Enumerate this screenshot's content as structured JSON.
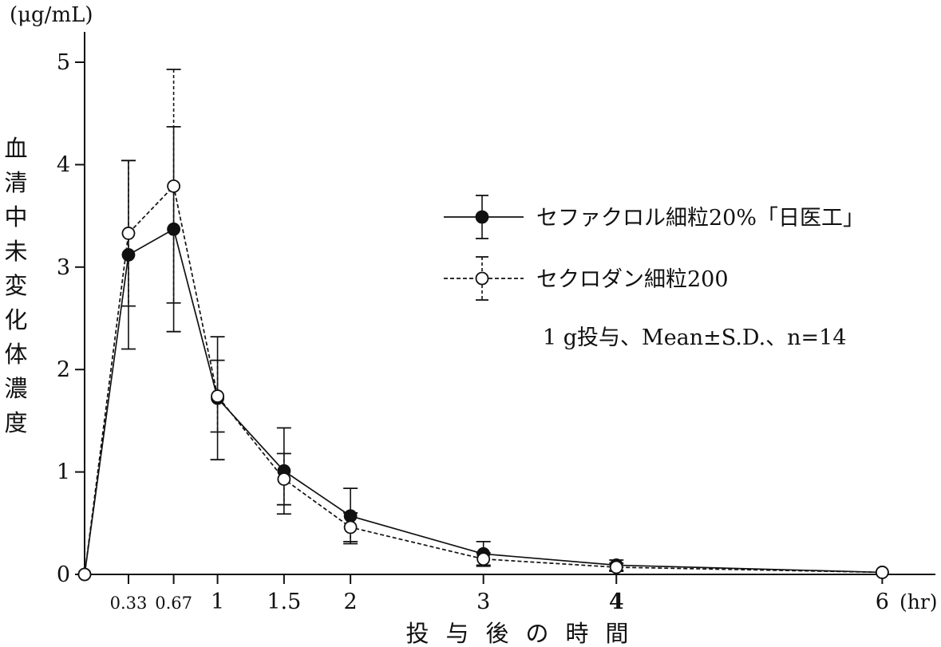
{
  "chart_data": {
    "type": "line",
    "title": "",
    "y_unit_label": "(μg/mL)",
    "ylabel": "血清中未変化体濃度",
    "xlabel": "投与後の時間",
    "x_unit_label": "(hr)",
    "x_ticks": [
      {
        "value": 0.33,
        "label": "0.33"
      },
      {
        "value": 0.67,
        "label": "0.67"
      },
      {
        "value": 1,
        "label": "1"
      },
      {
        "value": 1.5,
        "label": "1.5"
      },
      {
        "value": 2,
        "label": "2"
      },
      {
        "value": 3,
        "label": "3"
      },
      {
        "value": 4,
        "label": "4"
      },
      {
        "value": 6,
        "label": "6"
      }
    ],
    "y_ticks": [
      0,
      1,
      2,
      3,
      4,
      5
    ],
    "xlim": [
      0,
      6.4
    ],
    "ylim": [
      0,
      5
    ],
    "legend_placement": "upper-right",
    "series": [
      {
        "name": "セファクロル細粒20%「日医工」",
        "marker": "filled-circle",
        "line_style": "solid",
        "color": "#111111",
        "points": [
          {
            "x": 0,
            "y": 0,
            "sd": null
          },
          {
            "x": 0.33,
            "y": 3.12,
            "sd": 0.92
          },
          {
            "x": 0.67,
            "y": 3.37,
            "sd": 1.0
          },
          {
            "x": 1,
            "y": 1.72,
            "sd": 0.6
          },
          {
            "x": 1.5,
            "y": 1.01,
            "sd": 0.42
          },
          {
            "x": 2,
            "y": 0.57,
            "sd": 0.27
          },
          {
            "x": 3,
            "y": 0.2,
            "sd": 0.12
          },
          {
            "x": 4,
            "y": 0.09,
            "sd": 0.05
          },
          {
            "x": 6,
            "y": 0.02,
            "sd": null
          }
        ]
      },
      {
        "name": "セクロダン細粒200",
        "marker": "open-circle",
        "line_style": "dashed",
        "color": "#111111",
        "points": [
          {
            "x": 0,
            "y": 0,
            "sd": null
          },
          {
            "x": 0.33,
            "y": 3.33,
            "sd": 0.71
          },
          {
            "x": 0.67,
            "y": 3.79,
            "sd": 1.14
          },
          {
            "x": 1,
            "y": 1.74,
            "sd": 0.35
          },
          {
            "x": 1.5,
            "y": 0.93,
            "sd": 0.25
          },
          {
            "x": 2,
            "y": 0.46,
            "sd": 0.14
          },
          {
            "x": 3,
            "y": 0.15,
            "sd": 0.06
          },
          {
            "x": 4,
            "y": 0.07,
            "sd": 0.04
          },
          {
            "x": 6,
            "y": 0.02,
            "sd": null
          }
        ]
      }
    ],
    "annotation": "1 g投与、Mean±S.D.、n=14"
  }
}
